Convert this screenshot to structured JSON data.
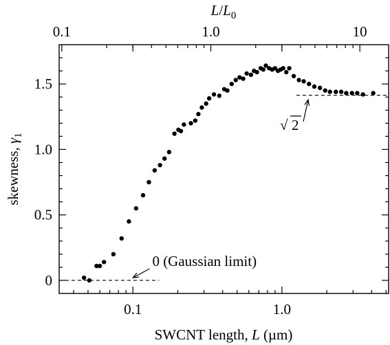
{
  "chart_data": {
    "type": "scatter",
    "xlabel_prefix": "SWCNT length, ",
    "xlabel_var": "L",
    "xlabel_unit": " (µm)",
    "ylabel_prefix": "skewness, ",
    "ylabel_var": "γ",
    "ylabel_sub": "1",
    "top_xlabel_num": "L",
    "top_xlabel_den": "L",
    "top_xlabel_den_sub": "0",
    "x_scale": "log",
    "xlim": [
      0.032,
      5.2
    ],
    "ylim": [
      -0.1,
      1.8
    ],
    "top_axis_factor": 3.0,
    "x_ticks": [
      0.1,
      1.0
    ],
    "x_tick_labels": [
      "0.1",
      "1.0"
    ],
    "y_ticks": [
      0,
      0.5,
      1.0,
      1.5
    ],
    "y_tick_labels": [
      "0",
      "0.5",
      "1.0",
      "1.5"
    ],
    "top_ticks": [
      0.1,
      1.0,
      10
    ],
    "top_tick_labels": [
      "0.1",
      "1.0",
      "10"
    ],
    "grid": false,
    "series": [
      {
        "x": [
          0.047,
          0.051,
          0.057,
          0.06,
          0.064,
          0.074,
          0.084,
          0.094,
          0.105,
          0.117,
          0.128,
          0.14,
          0.152,
          0.163,
          0.175,
          0.19,
          0.202,
          0.21,
          0.22,
          0.245,
          0.262,
          0.275,
          0.29,
          0.31,
          0.325,
          0.35,
          0.38,
          0.41,
          0.43,
          0.46,
          0.49,
          0.52,
          0.55,
          0.58,
          0.62,
          0.65,
          0.68,
          0.72,
          0.75,
          0.78,
          0.82,
          0.86,
          0.9,
          0.94,
          0.98,
          1.02,
          1.07,
          1.12,
          1.2,
          1.3,
          1.4,
          1.52,
          1.65,
          1.8,
          1.95,
          2.1,
          2.3,
          2.5,
          2.7,
          2.95,
          3.2,
          3.5,
          4.1
        ],
        "y": [
          0.02,
          0.0,
          0.11,
          0.11,
          0.14,
          0.2,
          0.32,
          0.45,
          0.55,
          0.65,
          0.75,
          0.84,
          0.88,
          0.93,
          0.98,
          1.12,
          1.15,
          1.14,
          1.19,
          1.2,
          1.22,
          1.27,
          1.32,
          1.35,
          1.39,
          1.42,
          1.41,
          1.46,
          1.45,
          1.5,
          1.53,
          1.55,
          1.54,
          1.58,
          1.57,
          1.6,
          1.59,
          1.62,
          1.61,
          1.64,
          1.62,
          1.61,
          1.62,
          1.6,
          1.61,
          1.62,
          1.59,
          1.62,
          1.56,
          1.53,
          1.52,
          1.5,
          1.48,
          1.47,
          1.45,
          1.44,
          1.44,
          1.44,
          1.43,
          1.43,
          1.43,
          1.42,
          1.43
        ]
      }
    ],
    "reference_lines": [
      {
        "x": [
          0.032,
          0.15
        ],
        "y": 0
      },
      {
        "x": [
          1.25,
          5.2
        ],
        "y": 1.414
      }
    ],
    "annotations": [
      {
        "text": "0 (Gaussian limit)",
        "x": 0.135,
        "y": 0.11,
        "arrow_to": [
          0.1,
          0.02
        ]
      },
      {
        "text_radical": "√",
        "text": "2",
        "x": 0.97,
        "y": 1.15,
        "arrow_to": [
          1.5,
          1.38
        ]
      }
    ]
  }
}
